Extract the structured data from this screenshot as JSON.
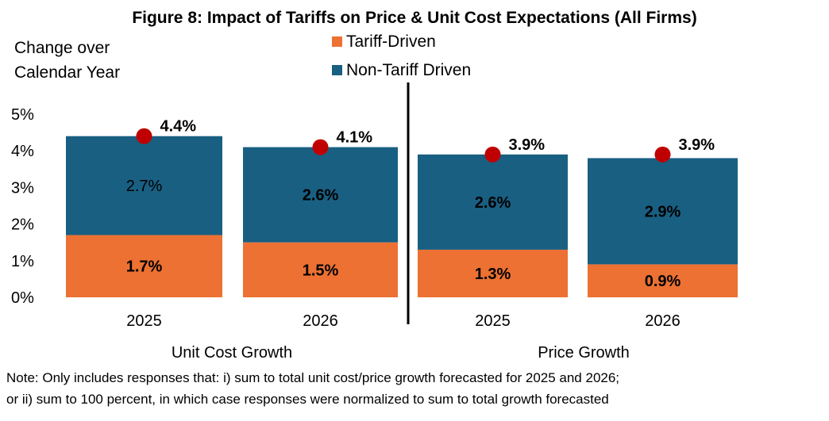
{
  "chart_data": {
    "type": "bar",
    "stacked": true,
    "title": "Figure 8: Impact of Tariffs on Price & Unit Cost Expectations (All Firms)",
    "ylabel": [
      "Change over",
      "Calendar Year"
    ],
    "xlabel": "",
    "ylim": [
      0,
      5
    ],
    "yticks": [
      "0%",
      "1%",
      "2%",
      "3%",
      "4%",
      "5%"
    ],
    "ytick_values": [
      0,
      1,
      2,
      3,
      4,
      5
    ],
    "grid": false,
    "legend_position": "top-center",
    "colors": {
      "tariff": "#EC7133",
      "non_tariff": "#195F82",
      "marker": "#C00000",
      "divider": "#000000"
    },
    "groups": [
      {
        "name": "Unit Cost Growth",
        "categories": [
          "2025",
          "2026"
        ]
      },
      {
        "name": "Price Growth",
        "categories": [
          "2025",
          "2026"
        ]
      }
    ],
    "categories": [
      "2025",
      "2026",
      "2025",
      "2026"
    ],
    "series": [
      {
        "name": "Tariff-Driven",
        "values": [
          1.7,
          1.5,
          1.3,
          0.9
        ],
        "labels": [
          "1.7%",
          "1.5%",
          "1.3%",
          "0.9%"
        ]
      },
      {
        "name": "Non-Tariff Driven",
        "values": [
          2.7,
          2.6,
          2.6,
          2.9
        ],
        "labels": [
          "2.7%",
          "2.6%",
          "2.6%",
          "2.9%"
        ]
      }
    ],
    "totals": {
      "values": [
        4.4,
        4.1,
        3.9,
        3.9
      ],
      "labels": [
        "4.4%",
        "4.1%",
        "3.9%",
        "3.9%"
      ],
      "marker": "red-dot"
    },
    "note": [
      "Note: Only includes responses that: i) sum to total unit cost/price growth forecasted for 2025 and 2026;",
      "or ii) sum to 100 percent, in which case responses were normalized  to sum to total growth forecasted"
    ]
  }
}
